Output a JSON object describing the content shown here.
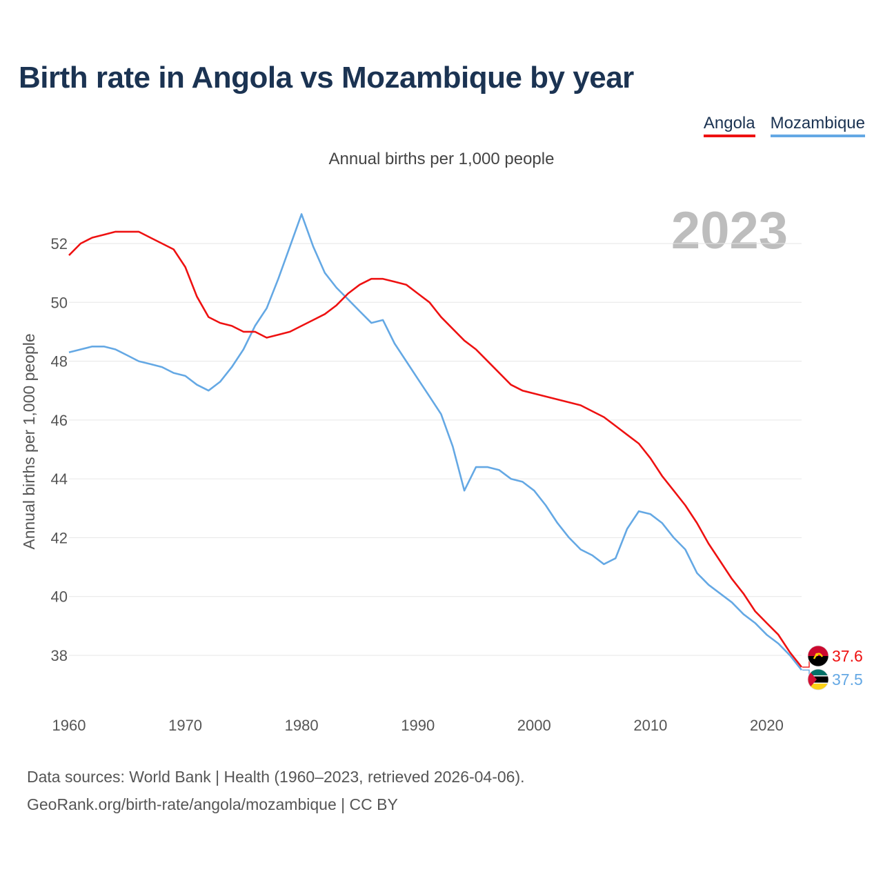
{
  "title": "Birth rate in Angola vs Mozambique by year",
  "legend": [
    "Angola",
    "Mozambique"
  ],
  "subtitle": "Annual births per 1,000 people",
  "year_display": "2023",
  "footer": {
    "line1": "Data sources: World Bank | Health (1960–2023, retrieved 2026-04-06).",
    "line2": "GeoRank.org/birth-rate/angola/mozambique | CC BY"
  },
  "colors": {
    "angola": "#ee1111",
    "mozambique": "#64a8e4"
  },
  "chart_data": {
    "type": "line",
    "title": "Birth rate in Angola vs Mozambique by year",
    "xlabel": "",
    "ylabel": "Annual births per 1,000 people",
    "xlim": [
      1960,
      2023
    ],
    "ylim": [
      37,
      53
    ],
    "x_ticks": [
      1960,
      1970,
      1980,
      1990,
      2000,
      2010,
      2020
    ],
    "y_ticks": [
      38,
      40,
      42,
      44,
      46,
      48,
      50,
      52
    ],
    "grid": true,
    "legend_position": "top-right",
    "x": [
      1960,
      1961,
      1962,
      1963,
      1964,
      1965,
      1966,
      1967,
      1968,
      1969,
      1970,
      1971,
      1972,
      1973,
      1974,
      1975,
      1976,
      1977,
      1978,
      1979,
      1980,
      1981,
      1982,
      1983,
      1984,
      1985,
      1986,
      1987,
      1988,
      1989,
      1990,
      1991,
      1992,
      1993,
      1994,
      1995,
      1996,
      1997,
      1998,
      1999,
      2000,
      2001,
      2002,
      2003,
      2004,
      2005,
      2006,
      2007,
      2008,
      2009,
      2010,
      2011,
      2012,
      2013,
      2014,
      2015,
      2016,
      2017,
      2018,
      2019,
      2020,
      2021,
      2022,
      2023
    ],
    "series": [
      {
        "name": "Angola",
        "color": "#ee1111",
        "end_label": "37.6",
        "values": [
          51.6,
          52.0,
          52.2,
          52.3,
          52.4,
          52.4,
          52.4,
          52.2,
          52.0,
          51.8,
          51.2,
          50.2,
          49.5,
          49.3,
          49.2,
          49.0,
          49.0,
          48.8,
          48.9,
          49.0,
          49.2,
          49.4,
          49.6,
          49.9,
          50.3,
          50.6,
          50.8,
          50.8,
          50.7,
          50.6,
          50.3,
          50.0,
          49.5,
          49.1,
          48.7,
          48.4,
          48.0,
          47.6,
          47.2,
          47.0,
          46.9,
          46.8,
          46.7,
          46.6,
          46.5,
          46.3,
          46.1,
          45.8,
          45.5,
          45.2,
          44.7,
          44.1,
          43.6,
          43.1,
          42.5,
          41.8,
          41.2,
          40.6,
          40.1,
          39.5,
          39.1,
          38.7,
          38.1,
          37.6
        ]
      },
      {
        "name": "Mozambique",
        "color": "#64a8e4",
        "end_label": "37.5",
        "values": [
          48.3,
          48.4,
          48.5,
          48.5,
          48.4,
          48.2,
          48.0,
          47.9,
          47.8,
          47.6,
          47.5,
          47.2,
          47.0,
          47.3,
          47.8,
          48.4,
          49.2,
          49.8,
          50.8,
          51.9,
          53.0,
          51.9,
          51.0,
          50.5,
          50.1,
          49.7,
          49.3,
          49.4,
          48.6,
          48.0,
          47.4,
          46.8,
          46.2,
          45.1,
          43.6,
          44.4,
          44.4,
          44.3,
          44.0,
          43.9,
          43.6,
          43.1,
          42.5,
          42.0,
          41.6,
          41.4,
          41.1,
          41.3,
          42.3,
          42.9,
          42.8,
          42.5,
          42.0,
          41.6,
          40.8,
          40.4,
          40.1,
          39.8,
          39.4,
          39.1,
          38.7,
          38.4,
          38.0,
          37.5
        ]
      }
    ]
  }
}
